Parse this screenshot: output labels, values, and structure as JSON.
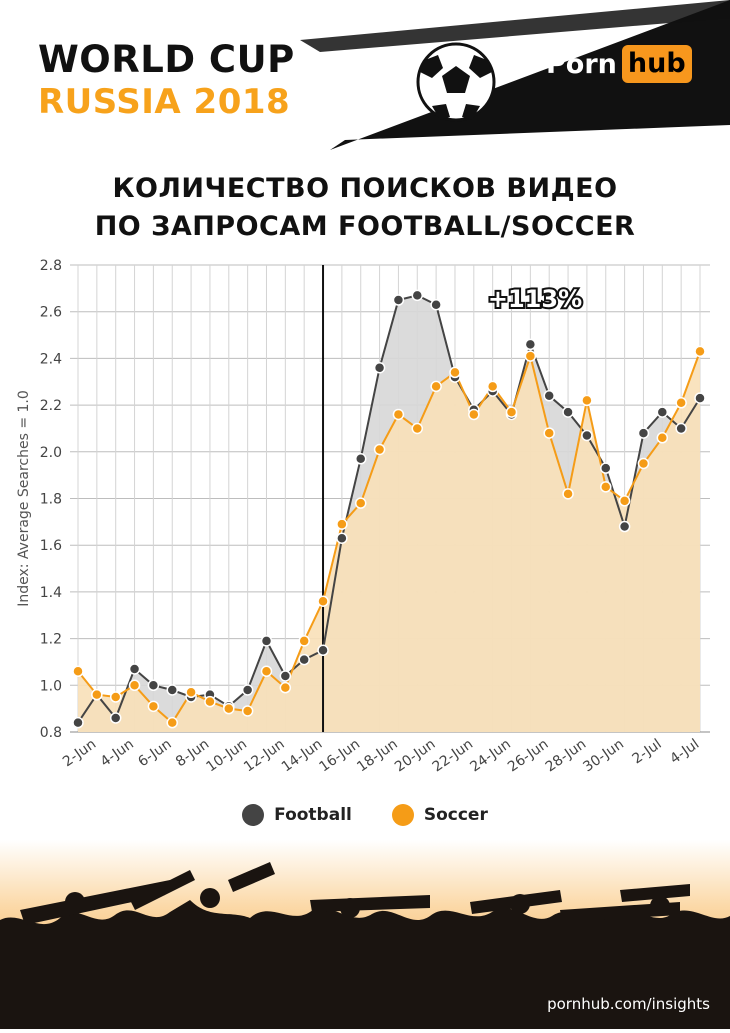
{
  "header": {
    "title": "WORLD CUP",
    "subtitle": "RUSSIA 2018",
    "logo_part1": "Porn",
    "logo_part2": "hub"
  },
  "headline": {
    "line1": "КОЛИЧЕСТВО ПОИСКОВ ВИДЕО",
    "line2": "ПО ЗАПРОСАМ FOOTBALL/SOCCER"
  },
  "chart_data": {
    "type": "area",
    "title": "",
    "xlabel": "",
    "ylabel": "Index: Average Searches = 1.0",
    "ylim": [
      0.8,
      2.8
    ],
    "yticks": [
      "0.8",
      "1.0",
      "1.2",
      "1.4",
      "1.6",
      "1.8",
      "2.0",
      "2.2",
      "2.4",
      "2.6",
      "2.8"
    ],
    "x_tick_labels": [
      "2-Jun",
      "4-Jun",
      "6-Jun",
      "8-Jun",
      "10-Jun",
      "12-Jun",
      "14-Jun",
      "16-Jun",
      "18-Jun",
      "20-Jun",
      "22-Jun",
      "24-Jun",
      "26-Jun",
      "28-Jun",
      "30-Jun",
      "2-Jul",
      "4-Jul"
    ],
    "x": [
      "1-Jun",
      "2-Jun",
      "3-Jun",
      "4-Jun",
      "5-Jun",
      "6-Jun",
      "7-Jun",
      "8-Jun",
      "9-Jun",
      "10-Jun",
      "11-Jun",
      "12-Jun",
      "13-Jun",
      "14-Jun",
      "15-Jun",
      "16-Jun",
      "17-Jun",
      "18-Jun",
      "19-Jun",
      "20-Jun",
      "21-Jun",
      "22-Jun",
      "23-Jun",
      "24-Jun",
      "25-Jun",
      "26-Jun",
      "27-Jun",
      "28-Jun",
      "29-Jun",
      "30-Jun",
      "1-Jul",
      "2-Jul",
      "3-Jul",
      "4-Jul"
    ],
    "series": [
      {
        "name": "Football",
        "color": "#444444",
        "values": [
          0.84,
          0.96,
          0.86,
          1.07,
          1.0,
          0.98,
          0.95,
          0.96,
          0.91,
          0.98,
          1.19,
          1.04,
          1.11,
          1.15,
          1.63,
          1.97,
          2.36,
          2.65,
          2.67,
          2.63,
          2.32,
          2.18,
          2.26,
          2.16,
          2.46,
          2.24,
          2.17,
          2.07,
          1.93,
          1.68,
          2.08,
          2.17,
          2.1,
          2.23
        ]
      },
      {
        "name": "Soccer",
        "color": "#f59c17",
        "values": [
          1.06,
          0.96,
          0.95,
          1.0,
          0.91,
          0.84,
          0.97,
          0.93,
          0.9,
          0.89,
          1.06,
          0.99,
          1.19,
          1.36,
          1.69,
          1.78,
          2.01,
          2.16,
          2.1,
          2.28,
          2.34,
          2.16,
          2.28,
          2.17,
          2.41,
          2.08,
          1.82,
          2.22,
          1.85,
          1.79,
          1.95,
          2.06,
          2.21,
          2.43
        ]
      }
    ],
    "marker_line_at": "14-Jun",
    "annotation": "+113%",
    "grid": true,
    "legend_position": "bottom"
  },
  "footer": {
    "url": "pornhub.com/insights"
  }
}
